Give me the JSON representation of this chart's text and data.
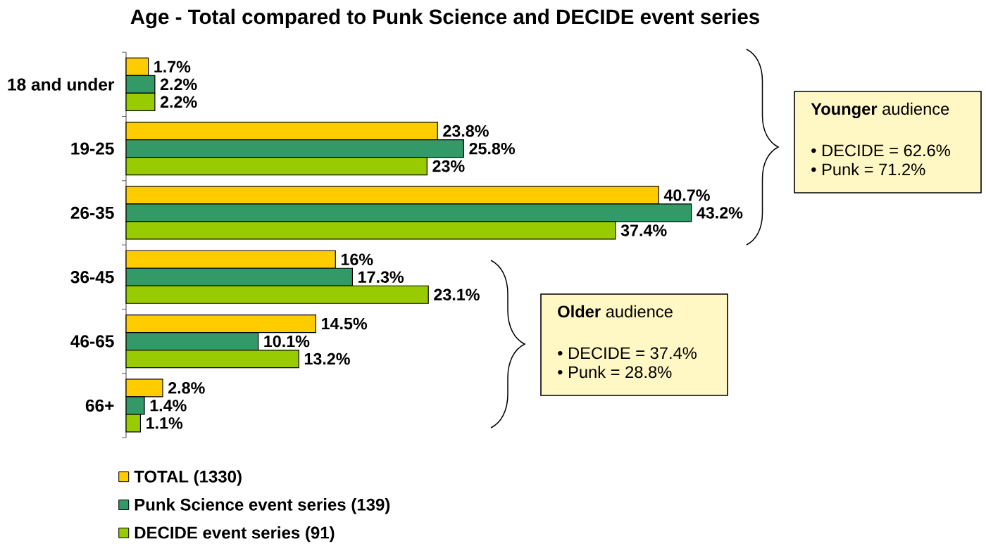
{
  "chart_data": {
    "type": "bar",
    "orientation": "horizontal",
    "title": "Age - Total compared to Punk Science and DECIDE event series",
    "categories": [
      "18 and under",
      "19-25",
      "26-35",
      "36-45",
      "46-65",
      "66+"
    ],
    "series": [
      {
        "name": "TOTAL (1330)",
        "color": "#ffcc00",
        "values": [
          1.7,
          23.8,
          40.7,
          16,
          14.5,
          2.8
        ],
        "value_labels": [
          "1.7%",
          "23.8%",
          "40.7%",
          "16%",
          "14.5%",
          "2.8%"
        ]
      },
      {
        "name": "Punk Science event series (139)",
        "color": "#339966",
        "values": [
          2.2,
          25.8,
          43.2,
          17.3,
          10.1,
          1.4
        ],
        "value_labels": [
          "2.2%",
          "25.8%",
          "43.2%",
          "17.3%",
          "10.1%",
          "1.4%"
        ]
      },
      {
        "name": "DECIDE event series (91)",
        "color": "#99cc00",
        "values": [
          2.2,
          23,
          37.4,
          23.1,
          13.2,
          1.1
        ],
        "value_labels": [
          "2.2%",
          "23%",
          "37.4%",
          "23.1%",
          "13.2%",
          "1.1%"
        ]
      }
    ],
    "legend": "bottom",
    "tick_labels": "y",
    "annotations": [
      "**Younger** audience",
      "• DECIDE = 62.6%",
      "• Punk = 71.2%",
      "**Older** audience",
      "• DECIDE = 37.4%",
      "• Punk = 28.8%"
    ]
  }
}
